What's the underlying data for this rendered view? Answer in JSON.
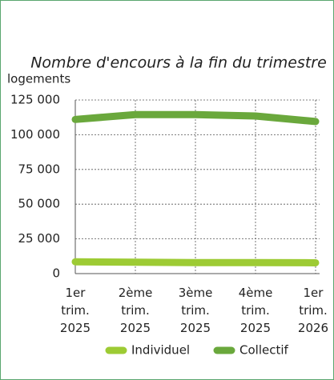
{
  "chart_data": {
    "type": "line",
    "title": "Nombre d'encours à la fin du trimestre",
    "y_label": "logements",
    "categories": [
      "1er trim. 2025",
      "2ème trim. 2025",
      "3ème trim. 2025",
      "4ème trim. 2025",
      "1er trim. 2026"
    ],
    "series": [
      {
        "name": "Individuel",
        "color": "#9dcb34",
        "values": [
          8500,
          8200,
          7900,
          7900,
          7800
        ]
      },
      {
        "name": "Collectif",
        "color": "#6aa83c",
        "values": [
          111000,
          114500,
          114500,
          113500,
          109500
        ]
      }
    ],
    "ylim": [
      0,
      125000
    ],
    "yticks": [
      0,
      {
        "value": 25000,
        "label": "25 000"
      },
      {
        "value": 50000,
        "label": "50 000"
      },
      {
        "value": 75000,
        "label": "75 000"
      },
      {
        "value": 100000,
        "label": "100 000"
      },
      {
        "value": 125000,
        "label": "125 000"
      }
    ],
    "grid": true,
    "legend": "bottom"
  }
}
